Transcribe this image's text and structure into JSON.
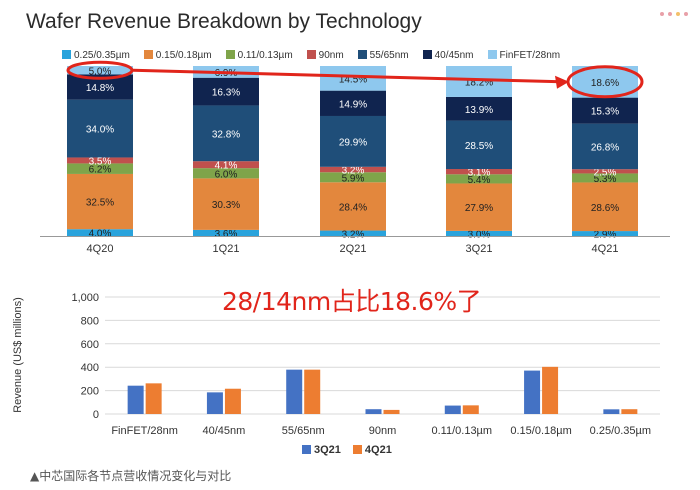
{
  "title": "Wafer Revenue Breakdown by Technology",
  "annotation": "28/14nm占比18.6%了",
  "caption": "▲中芯国际各节点营收情况变化与对比",
  "colors": {
    "n025": "#29a3dc",
    "n015": "#e3873d",
    "n011": "#7fa44a",
    "n90": "#c0504d",
    "n55": "#1f4e79",
    "n40": "#10244f",
    "finfet": "#8ec8ee",
    "q3": "#4472c4",
    "q4": "#ed7d31",
    "highlight": "#e1251b"
  },
  "chart_data": [
    {
      "type": "bar",
      "stacked": true,
      "percent": true,
      "title": "Wafer Revenue Breakdown by Technology",
      "categories": [
        "4Q20",
        "1Q21",
        "2Q21",
        "3Q21",
        "4Q21"
      ],
      "series": [
        {
          "name": "0.25/0.35µm",
          "values": [
            4.0,
            3.6,
            3.2,
            3.0,
            2.9
          ]
        },
        {
          "name": "0.15/0.18µm",
          "values": [
            32.5,
            30.3,
            28.4,
            27.9,
            28.6
          ]
        },
        {
          "name": "0.11/0.13µm",
          "values": [
            6.2,
            6.0,
            5.9,
            5.4,
            5.3
          ]
        },
        {
          "name": "90nm",
          "values": [
            3.5,
            4.1,
            3.2,
            3.1,
            2.5
          ]
        },
        {
          "name": "55/65nm",
          "values": [
            34.0,
            32.8,
            29.9,
            28.5,
            26.8
          ]
        },
        {
          "name": "40/45nm",
          "values": [
            14.8,
            16.3,
            14.9,
            13.9,
            15.3
          ]
        },
        {
          "name": "FinFET/28nm",
          "values": [
            5.0,
            6.9,
            14.5,
            18.2,
            18.6
          ]
        }
      ],
      "labels": [
        [
          "4.0%",
          "3.6%",
          "3.2%",
          "3.0%",
          "2.9%"
        ],
        [
          "32.5%",
          "30.3%",
          "28.4%",
          "27.9%",
          "28.6%"
        ],
        [
          "6.2%",
          "6.0%",
          "5.9%",
          "5.4%",
          "5.3%"
        ],
        [
          "3.5%",
          "4.1%",
          "3.2%",
          "3.1%",
          "2.5%"
        ],
        [
          "34.0%",
          "32.8%",
          "29.9%",
          "28.5%",
          "26.8%"
        ],
        [
          "14.8%",
          "16.3%",
          "14.9%",
          "13.9%",
          "15.3%"
        ],
        [
          "5.0%",
          "6.9%",
          "14.5%",
          "18.2%",
          "18.6%"
        ]
      ],
      "legend_position": "top"
    },
    {
      "type": "bar",
      "categories": [
        "FinFET/28nm",
        "40/45nm",
        "55/65nm",
        "90nm",
        "0.11/0.13µm",
        "0.15/0.18µm",
        "0.25/0.35µm"
      ],
      "series": [
        {
          "name": "3Q21",
          "values": [
            242,
            185,
            379,
            41,
            72,
            371,
            40
          ]
        },
        {
          "name": "4Q21",
          "values": [
            262,
            216,
            379,
            35,
            74,
            403,
            41
          ]
        }
      ],
      "ylabel": "Revenue (US$ millions)",
      "ylim": [
        0,
        1000
      ],
      "yticks": [
        "0",
        "200",
        "400",
        "600",
        "800",
        "1,000"
      ],
      "grid": true,
      "legend_position": "bottom"
    }
  ]
}
